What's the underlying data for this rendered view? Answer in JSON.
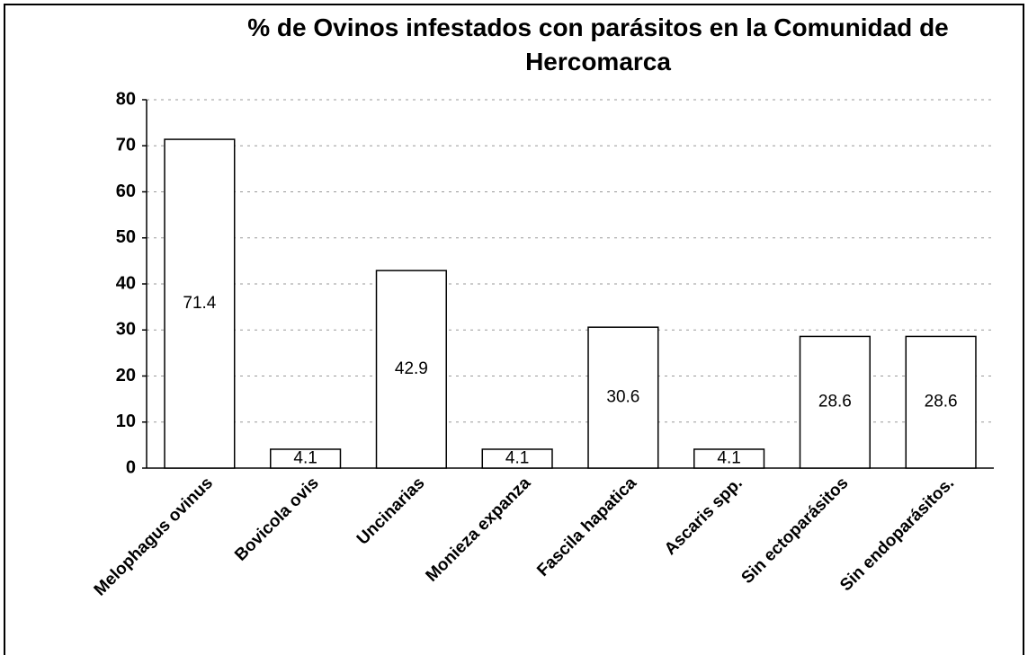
{
  "chart_data": {
    "type": "bar",
    "title": "% de Ovinos infestados con parásitos en la Comunidad de Hercomarca",
    "categories": [
      "Melophagus ovinus",
      "Bovicola ovis",
      "Uncinarias",
      "Monieza expanza",
      "Fascila hapatica",
      "Ascaris spp.",
      "Sin ectoparásitos",
      "Sin endoparásitos."
    ],
    "values": [
      71.4,
      4.1,
      42.9,
      4.1,
      30.6,
      4.1,
      28.6,
      28.6
    ],
    "color": "#ffffff",
    "ylim": [
      0,
      80
    ],
    "yticks": [
      0,
      10,
      20,
      30,
      40,
      50,
      60,
      70,
      80
    ],
    "grid": true
  }
}
